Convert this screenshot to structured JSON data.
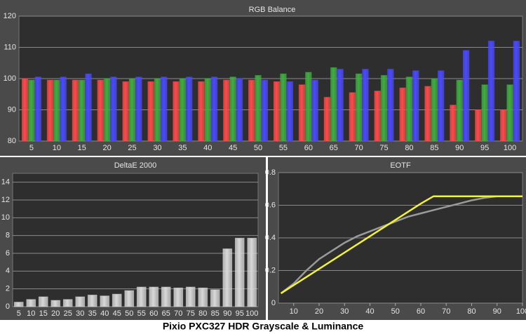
{
  "caption": "Pixio PXC327 HDR Grayscale & Luminance",
  "chart_data": [
    {
      "type": "bar",
      "title": "RGB Balance",
      "categories": [
        5,
        10,
        15,
        20,
        25,
        30,
        35,
        40,
        45,
        50,
        55,
        60,
        65,
        70,
        75,
        80,
        85,
        90,
        95,
        100
      ],
      "series": [
        {
          "color": "#ff4a4a",
          "values": [
            100,
            99.5,
            99.5,
            99.5,
            99,
            99,
            99,
            99,
            99.5,
            99.5,
            99,
            98,
            94,
            95.5,
            96,
            97,
            97.5,
            91.5,
            90,
            90
          ]
        },
        {
          "color": "#3fae3f",
          "values": [
            99.5,
            99.5,
            99.5,
            100,
            100,
            100,
            100,
            100,
            100.5,
            101,
            101.5,
            102,
            103.5,
            101.5,
            101,
            100.5,
            100,
            99.5,
            98,
            98
          ]
        },
        {
          "color": "#4a4aff",
          "values": [
            100.5,
            100.5,
            101.5,
            100.5,
            100.5,
            100.5,
            100.5,
            100.5,
            100,
            99.5,
            99,
            99.5,
            103,
            103,
            103,
            102.5,
            102.5,
            109,
            112,
            112
          ]
        }
      ],
      "ylim": [
        80,
        120
      ],
      "yticks": [
        80,
        90,
        100,
        110,
        120
      ],
      "grid": true
    },
    {
      "type": "bar",
      "title": "DeltaE 2000",
      "categories": [
        5,
        10,
        15,
        20,
        25,
        30,
        35,
        40,
        45,
        50,
        55,
        60,
        65,
        70,
        75,
        80,
        85,
        90,
        95,
        100
      ],
      "values": [
        0.5,
        0.8,
        1.1,
        0.7,
        0.8,
        1.1,
        1.3,
        1.2,
        1.4,
        1.8,
        2.2,
        2.2,
        2.2,
        2.1,
        2.2,
        2.1,
        1.9,
        6.5,
        7.7,
        7.7
      ],
      "color": "#d8d8d8",
      "ylim": [
        0,
        15
      ],
      "yticks": [
        0,
        2,
        4,
        6,
        8,
        10,
        12,
        14
      ],
      "grid": true
    },
    {
      "type": "line",
      "title": "EOTF",
      "x": [
        5,
        10,
        15,
        20,
        25,
        30,
        35,
        40,
        45,
        50,
        55,
        60,
        65,
        70,
        75,
        80,
        85,
        90,
        95,
        100
      ],
      "series": [
        {
          "color": "#9a9a9a",
          "values": [
            0.06,
            0.12,
            0.2,
            0.27,
            0.32,
            0.37,
            0.41,
            0.44,
            0.47,
            0.5,
            0.53,
            0.55,
            0.57,
            0.59,
            0.61,
            0.63,
            0.645,
            0.655,
            0.655,
            0.655
          ]
        },
        {
          "color": "#f2f23a",
          "values": [
            0.06,
            0.11,
            0.16,
            0.21,
            0.26,
            0.31,
            0.36,
            0.41,
            0.46,
            0.51,
            0.56,
            0.61,
            0.655,
            0.655,
            0.655,
            0.655,
            0.655,
            0.655,
            0.655,
            0.655
          ]
        }
      ],
      "xlim": [
        4,
        100
      ],
      "xticks": [
        10,
        20,
        30,
        40,
        50,
        60,
        70,
        80,
        90,
        100
      ],
      "ylim": [
        0,
        0.8
      ],
      "yticks": [
        0,
        0.2,
        0.4,
        0.6,
        0.8
      ],
      "grid": true
    }
  ]
}
